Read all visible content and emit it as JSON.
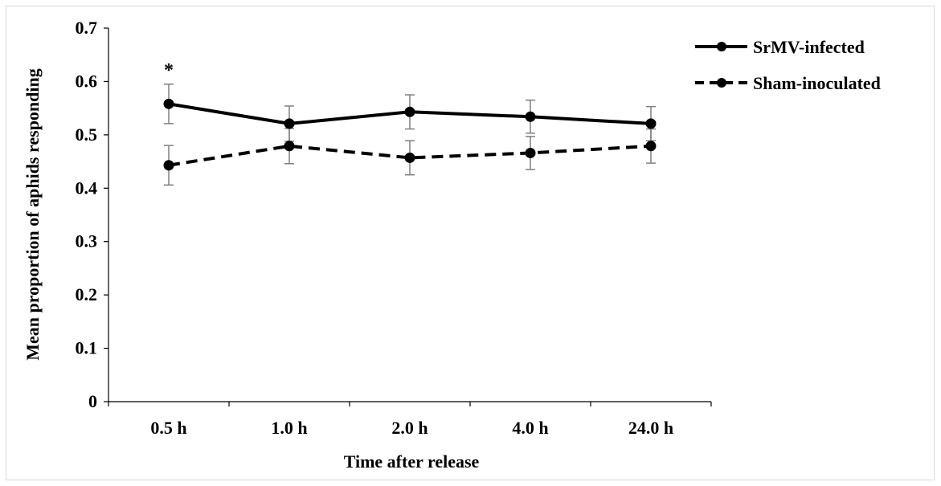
{
  "chart_data": {
    "type": "line",
    "title": "",
    "xlabel": "Time after release",
    "ylabel": "Mean proportion of aphids responding",
    "categories": [
      "0.5 h",
      "1.0 h",
      "2.0 h",
      "4.0 h",
      "24.0 h"
    ],
    "ylim": [
      0,
      0.7
    ],
    "yticks": [
      "0",
      "0.1",
      "0.2",
      "0.3",
      "0.4",
      "0.5",
      "0.6",
      "0.7"
    ],
    "grid": false,
    "legend_position": "top-right",
    "series": [
      {
        "name": "SrMV-infected",
        "values": [
          0.558,
          0.521,
          0.543,
          0.534,
          0.521
        ],
        "err": [
          0.037,
          0.033,
          0.032,
          0.031,
          0.032
        ],
        "line_style": "solid",
        "color": "#000000"
      },
      {
        "name": "Sham-inoculated",
        "values": [
          0.443,
          0.479,
          0.457,
          0.466,
          0.479
        ],
        "err": [
          0.037,
          0.033,
          0.032,
          0.031,
          0.032
        ],
        "line_style": "dashed",
        "color": "#000000"
      }
    ],
    "annotations": [
      {
        "text": "*",
        "category": "0.5 h",
        "series": "SrMV-infected"
      }
    ],
    "errorbar_color": "#7f7f7f"
  }
}
